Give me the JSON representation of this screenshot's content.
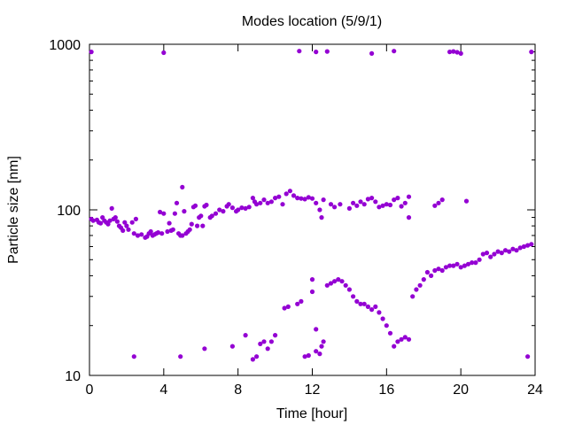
{
  "chart_data": {
    "type": "scatter",
    "title": "Modes location (5/9/1)",
    "xlabel": "Time [hour]",
    "ylabel": "Particle size [nm]",
    "xlim": [
      0,
      24
    ],
    "ylim": [
      10,
      1000
    ],
    "yscale": "log",
    "grid": false,
    "legend": "none",
    "xticks": [
      0,
      4,
      8,
      12,
      16,
      20,
      24
    ],
    "yticks": [
      10,
      100,
      1000
    ],
    "marker_color": "#9400d3",
    "series": [
      {
        "points": [
          [
            0.1,
            88
          ],
          [
            0.2,
            86
          ],
          [
            0.4,
            87
          ],
          [
            0.5,
            84
          ],
          [
            0.6,
            83
          ],
          [
            0.7,
            90
          ],
          [
            0.8,
            86
          ],
          [
            0.9,
            84
          ],
          [
            1.0,
            82
          ],
          [
            1.1,
            86
          ],
          [
            1.2,
            102
          ],
          [
            1.3,
            88
          ],
          [
            1.4,
            90
          ],
          [
            1.5,
            85
          ],
          [
            1.6,
            80
          ],
          [
            1.7,
            78
          ],
          [
            1.8,
            75
          ],
          [
            1.9,
            84
          ],
          [
            2.0,
            80
          ],
          [
            2.1,
            76
          ],
          [
            2.3,
            84
          ],
          [
            2.5,
            88
          ],
          [
            2.4,
            72
          ],
          [
            2.6,
            70
          ],
          [
            2.8,
            71
          ],
          [
            3.0,
            68
          ],
          [
            3.1,
            69
          ],
          [
            3.2,
            72
          ],
          [
            3.3,
            74
          ],
          [
            3.4,
            70
          ],
          [
            3.5,
            71
          ],
          [
            3.6,
            72
          ],
          [
            3.7,
            73
          ],
          [
            3.8,
            97
          ],
          [
            3.9,
            72
          ],
          [
            4.0,
            95
          ],
          [
            4.2,
            74
          ],
          [
            4.3,
            83
          ],
          [
            4.4,
            75
          ],
          [
            4.5,
            76
          ],
          [
            4.6,
            95
          ],
          [
            4.7,
            110
          ],
          [
            4.8,
            72
          ],
          [
            4.9,
            70
          ],
          [
            5.0,
            70
          ],
          [
            5.0,
            137
          ],
          [
            5.1,
            98
          ],
          [
            5.2,
            72
          ],
          [
            5.3,
            74
          ],
          [
            5.4,
            76
          ],
          [
            5.5,
            82
          ],
          [
            5.6,
            104
          ],
          [
            5.7,
            106
          ],
          [
            5.8,
            80
          ],
          [
            5.9,
            90
          ],
          [
            6.0,
            92
          ],
          [
            6.1,
            80
          ],
          [
            6.2,
            105
          ],
          [
            6.3,
            107
          ],
          [
            6.5,
            90
          ],
          [
            6.6,
            92
          ],
          [
            6.8,
            95
          ],
          [
            7.0,
            100
          ],
          [
            7.2,
            98
          ],
          [
            7.4,
            105
          ],
          [
            7.5,
            108
          ],
          [
            7.7,
            103
          ],
          [
            7.9,
            98
          ],
          [
            8.0,
            100
          ],
          [
            8.2,
            103
          ],
          [
            8.4,
            102
          ],
          [
            8.6,
            104
          ],
          [
            8.8,
            118
          ],
          [
            8.9,
            112
          ],
          [
            9.0,
            108
          ],
          [
            9.2,
            110
          ],
          [
            9.4,
            115
          ],
          [
            9.6,
            110
          ],
          [
            9.8,
            112
          ],
          [
            10.0,
            118
          ],
          [
            10.2,
            120
          ],
          [
            10.4,
            108
          ],
          [
            10.6,
            125
          ],
          [
            10.8,
            130
          ],
          [
            11.0,
            122
          ],
          [
            11.2,
            118
          ],
          [
            11.4,
            117
          ],
          [
            11.6,
            116
          ],
          [
            11.8,
            119
          ],
          [
            12.0,
            117
          ],
          [
            12.2,
            110
          ],
          [
            12.4,
            100
          ],
          [
            12.5,
            90
          ],
          [
            12.6,
            115
          ],
          [
            13.0,
            108
          ],
          [
            13.2,
            104
          ],
          [
            13.5,
            108
          ],
          [
            14.0,
            102
          ],
          [
            14.2,
            110
          ],
          [
            14.4,
            106
          ],
          [
            14.6,
            112
          ],
          [
            14.8,
            108
          ],
          [
            15.0,
            116
          ],
          [
            15.2,
            118
          ],
          [
            15.4,
            112
          ],
          [
            15.6,
            104
          ],
          [
            15.8,
            106
          ],
          [
            16.0,
            108
          ],
          [
            16.2,
            107
          ],
          [
            16.4,
            115
          ],
          [
            16.6,
            118
          ],
          [
            16.8,
            105
          ],
          [
            17.0,
            110
          ],
          [
            17.2,
            120
          ],
          [
            17.2,
            90
          ],
          [
            18.6,
            106
          ],
          [
            18.8,
            110
          ],
          [
            19.0,
            115
          ],
          [
            20.3,
            113
          ],
          [
            2.4,
            13
          ],
          [
            4.9,
            13
          ],
          [
            6.2,
            14.5
          ],
          [
            7.7,
            15
          ],
          [
            8.4,
            17.5
          ],
          [
            8.8,
            12.5
          ],
          [
            9.0,
            13
          ],
          [
            9.2,
            15.5
          ],
          [
            9.4,
            16
          ],
          [
            9.6,
            14.5
          ],
          [
            9.8,
            16
          ],
          [
            10.0,
            17.5
          ],
          [
            10.5,
            25.5
          ],
          [
            10.7,
            26
          ],
          [
            11.2,
            27
          ],
          [
            11.4,
            28
          ],
          [
            11.6,
            13
          ],
          [
            11.8,
            13.2
          ],
          [
            12.0,
            32
          ],
          [
            12.2,
            14
          ],
          [
            12.4,
            13.5
          ],
          [
            12.5,
            15
          ],
          [
            12.6,
            16
          ],
          [
            12.8,
            35
          ],
          [
            13.0,
            36
          ],
          [
            13.2,
            37
          ],
          [
            13.4,
            38
          ],
          [
            13.6,
            37
          ],
          [
            13.8,
            35
          ],
          [
            14.0,
            33
          ],
          [
            14.2,
            30
          ],
          [
            14.4,
            28
          ],
          [
            14.6,
            27
          ],
          [
            14.8,
            27
          ],
          [
            15.0,
            26
          ],
          [
            15.2,
            25
          ],
          [
            15.4,
            26
          ],
          [
            15.6,
            24
          ],
          [
            15.8,
            22
          ],
          [
            16.0,
            20
          ],
          [
            16.2,
            18
          ],
          [
            16.4,
            15
          ],
          [
            16.6,
            16
          ],
          [
            16.8,
            16.5
          ],
          [
            17.0,
            17
          ],
          [
            17.2,
            16.5
          ],
          [
            12.2,
            19
          ],
          [
            12.0,
            38
          ],
          [
            17.4,
            30
          ],
          [
            17.6,
            33
          ],
          [
            17.8,
            35
          ],
          [
            18.0,
            38
          ],
          [
            18.2,
            42
          ],
          [
            18.4,
            40
          ],
          [
            18.6,
            43
          ],
          [
            18.8,
            44
          ],
          [
            19.0,
            43
          ],
          [
            19.2,
            45
          ],
          [
            19.4,
            46
          ],
          [
            19.6,
            46
          ],
          [
            19.8,
            47
          ],
          [
            20.0,
            45
          ],
          [
            20.2,
            46
          ],
          [
            20.4,
            47
          ],
          [
            20.6,
            48
          ],
          [
            20.8,
            48
          ],
          [
            21.0,
            50
          ],
          [
            21.2,
            54
          ],
          [
            21.4,
            55
          ],
          [
            21.6,
            52
          ],
          [
            21.8,
            54
          ],
          [
            22.0,
            56
          ],
          [
            22.2,
            55
          ],
          [
            22.4,
            57
          ],
          [
            22.6,
            56
          ],
          [
            22.8,
            58
          ],
          [
            23.0,
            57
          ],
          [
            23.2,
            59
          ],
          [
            23.4,
            60
          ],
          [
            23.6,
            61
          ],
          [
            23.8,
            62
          ],
          [
            23.6,
            13
          ],
          [
            0.1,
            900
          ],
          [
            4.0,
            890
          ],
          [
            11.3,
            910
          ],
          [
            12.2,
            900
          ],
          [
            12.8,
            905
          ],
          [
            15.2,
            880
          ],
          [
            16.4,
            910
          ],
          [
            19.4,
            900
          ],
          [
            19.6,
            905
          ],
          [
            19.8,
            895
          ],
          [
            20.0,
            880
          ],
          [
            23.8,
            900
          ]
        ]
      }
    ]
  }
}
